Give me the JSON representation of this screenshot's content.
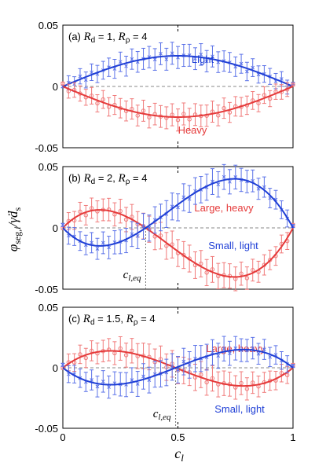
{
  "colors": {
    "light": "#1f3fd6",
    "heavy": "#e53a3a",
    "grid": "#888888",
    "light_err": "#5b72e8",
    "heavy_err": "#f07a7a"
  },
  "y_axis_label": "φseg,i/γ̇ds",
  "x_axis_label": "cl",
  "chart_data": [
    {
      "type": "line",
      "panel_label": "(a) Rd = 1, Rρ = 4",
      "xlim": [
        0,
        1
      ],
      "ylim": [
        -0.05,
        0.05
      ],
      "x_ticks": [
        "0",
        "0.5",
        "1"
      ],
      "y_ticks": [
        "-0.05",
        "0",
        "0.05"
      ],
      "grid": "dashed zero line",
      "series": [
        {
          "name": "Light",
          "color": "#1f3fd6",
          "fit_amp": 0.025,
          "fit_shape": "sin_pi",
          "fit_skew": 0.0,
          "marker": "x"
        },
        {
          "name": "Heavy",
          "color": "#e53a3a",
          "fit_amp": -0.025,
          "fit_shape": "sin_pi",
          "fit_skew": 0.0,
          "marker": "o"
        }
      ],
      "err": 0.009
    },
    {
      "type": "line",
      "panel_label": "(b) Rd = 2, Rρ = 4",
      "xlim": [
        0,
        1
      ],
      "ylim": [
        -0.05,
        0.05
      ],
      "x_ticks": [
        "0",
        "0.5",
        "1"
      ],
      "y_ticks": [
        "-0.05",
        "0",
        "0.05"
      ],
      "grid": "dashed zero line",
      "crossover_x": 0.36,
      "crossover_label": "cl,eq",
      "series": [
        {
          "name": "Large, heavy",
          "color": "#e53a3a",
          "fit_amp": 0.04,
          "fit_shape": "crossover",
          "fit_skew": 0.36,
          "marker": "o"
        },
        {
          "name": "Small, light",
          "color": "#1f3fd6",
          "fit_amp": -0.04,
          "fit_shape": "crossover",
          "fit_skew": 0.36,
          "marker": "x"
        }
      ],
      "err": 0.011
    },
    {
      "type": "line",
      "panel_label": "(c) Rd = 1.5, Rρ = 4",
      "xlim": [
        0,
        1
      ],
      "ylim": [
        -0.05,
        0.05
      ],
      "x_ticks": [
        "0",
        "0.5",
        "1"
      ],
      "y_ticks": [
        "-0.05",
        "0",
        "0.05"
      ],
      "grid": "dashed zero line",
      "crossover_x": 0.49,
      "crossover_label": "cl,eq",
      "series": [
        {
          "name": "Large, heavy",
          "color": "#e53a3a",
          "fit_amp": 0.015,
          "fit_shape": "crossover",
          "fit_skew": 0.49,
          "marker": "o"
        },
        {
          "name": "Small, light",
          "color": "#1f3fd6",
          "fit_amp": -0.015,
          "fit_shape": "crossover",
          "fit_skew": 0.49,
          "marker": "x"
        }
      ],
      "err": 0.011
    }
  ]
}
